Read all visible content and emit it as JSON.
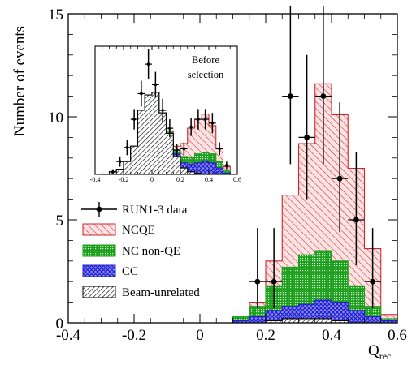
{
  "chart_data": {
    "type": "bar",
    "ylabel": "Number of events",
    "xlabel_main": "Q",
    "xlabel_sub": "rec",
    "xlim": [
      -0.4,
      0.6
    ],
    "ylim": [
      0,
      15
    ],
    "x_ticks": [
      "-0.4",
      "-0.2",
      "0",
      "0.2",
      "0.4",
      "0.6"
    ],
    "y_ticks": [
      "0",
      "5",
      "10",
      "15"
    ],
    "bin_width": 0.05,
    "bin_starts": [
      0.05,
      0.1,
      0.15,
      0.2,
      0.25,
      0.3,
      0.35,
      0.4,
      0.45,
      0.5,
      0.55
    ],
    "stack_totals": {
      "beam_unrelated": [
        0,
        0,
        0,
        0.1,
        0.2,
        0.2,
        0.2,
        0.1,
        0,
        0,
        0
      ],
      "cc": [
        0,
        0.1,
        0.3,
        0.6,
        0.8,
        0.9,
        1.1,
        1.0,
        0.6,
        0.3,
        0.1
      ],
      "nc_nonqe": [
        0,
        0.3,
        0.8,
        1.8,
        2.7,
        3.3,
        3.5,
        3.0,
        1.8,
        0.8,
        0.2
      ],
      "ncqe": [
        0,
        0.3,
        1.0,
        3.0,
        6.2,
        8.7,
        11.6,
        10.1,
        7.5,
        3.6,
        0.4
      ]
    },
    "data_points": {
      "x": [
        0.175,
        0.225,
        0.275,
        0.325,
        0.375,
        0.425,
        0.475,
        0.525
      ],
      "y": [
        2,
        2,
        11,
        9,
        11,
        7,
        5,
        2
      ],
      "err_low": [
        1.3,
        1.3,
        3.3,
        3.0,
        3.3,
        2.6,
        2.2,
        1.3
      ],
      "err_high": [
        2.6,
        2.6,
        4.4,
        4.0,
        4.4,
        3.7,
        3.3,
        2.6
      ]
    },
    "colors": {
      "ncqe": "#d0262b",
      "ncqe_fill": "#fbe3e3",
      "nc_nonqe": "#1d9f1d",
      "cc": "#1f1fd0",
      "beam_unrelated": "#000000"
    },
    "legend": [
      {
        "key": "data",
        "label": "RUN1-3 data"
      },
      {
        "key": "ncqe",
        "label": "NCQE"
      },
      {
        "key": "nc_nonqe",
        "label": "NC non-QE"
      },
      {
        "key": "cc",
        "label": "CC"
      },
      {
        "key": "beam_unrelated",
        "label": "Beam-unrelated"
      }
    ],
    "inset": {
      "annotation_line1": "Before",
      "annotation_line2": "selection",
      "xlim": [
        -0.4,
        0.6
      ],
      "x_ticks": [
        "-0.4",
        "-0.2",
        "0",
        "0.2",
        "0.4",
        "0.6"
      ],
      "ymax": 100,
      "bin_width": 0.05,
      "bin_starts": [
        -0.3,
        -0.25,
        -0.2,
        -0.15,
        -0.1,
        -0.05,
        0.0,
        0.05,
        0.1,
        0.15,
        0.2,
        0.25,
        0.3,
        0.35,
        0.4,
        0.45,
        0.5
      ],
      "stack_totals": {
        "beam_unrelated": [
          2,
          4,
          10,
          22,
          50,
          62,
          64,
          48,
          32,
          14,
          5,
          2,
          1,
          0,
          0,
          0,
          0
        ],
        "cc": [
          2,
          4,
          10,
          22,
          50,
          62,
          64,
          48,
          32,
          16,
          9,
          8,
          9,
          10,
          9,
          5,
          1
        ],
        "nc_nonqe": [
          2,
          4,
          10,
          22,
          50,
          62,
          64,
          48,
          33,
          19,
          14,
          13,
          16,
          17,
          16,
          10,
          3
        ],
        "ncqe": [
          2,
          4,
          10,
          22,
          50,
          62,
          64,
          48,
          34,
          22,
          24,
          36,
          43,
          47,
          38,
          20,
          6
        ]
      },
      "data_points": {
        "x": [
          -0.275,
          -0.225,
          -0.175,
          -0.125,
          -0.075,
          -0.025,
          0.025,
          0.075,
          0.125,
          0.175,
          0.225,
          0.275,
          0.325,
          0.375,
          0.425,
          0.475,
          0.525
        ],
        "y": [
          2,
          10,
          21,
          43,
          63,
          86,
          70,
          50,
          36,
          19,
          20,
          37,
          43,
          43,
          40,
          20,
          7
        ],
        "err": [
          2,
          4,
          6,
          8,
          10,
          12,
          10,
          9,
          7,
          5,
          5,
          7,
          8,
          8,
          8,
          5,
          3
        ]
      }
    }
  }
}
